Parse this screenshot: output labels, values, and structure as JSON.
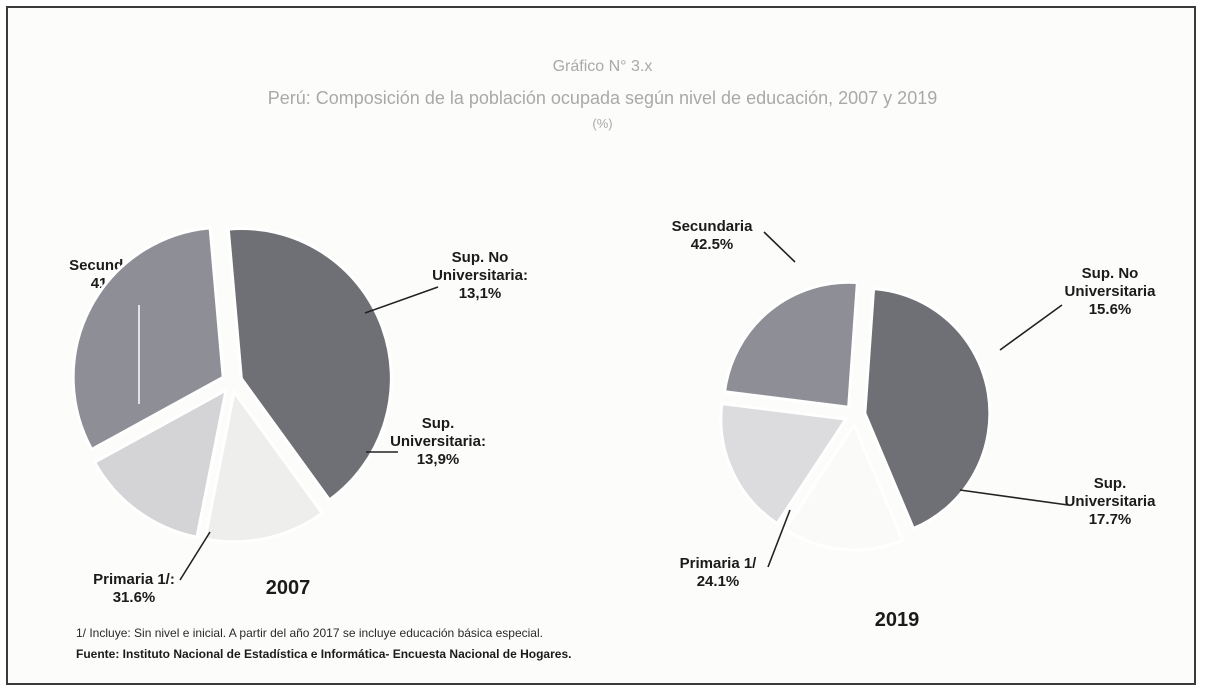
{
  "header": {
    "number": "Gráfico N° 3.x",
    "title": "Perú: Composición de la población ocupada según nivel de educación, 2007 y 2019",
    "subtitle": "(%)"
  },
  "chart_data": [
    {
      "type": "pie",
      "title": "2007",
      "slices": [
        {
          "name": "Secundaria",
          "value": 41.4,
          "label": [
            "Secundaria:",
            "41.4%"
          ],
          "color": "#6f6f76"
        },
        {
          "name": "Sup. No Universitaria",
          "value": 13.1,
          "label": [
            "Sup. No",
            "Universitaria:",
            "13,1%"
          ],
          "color": "#eeeeec"
        },
        {
          "name": "Sup. Universitaria",
          "value": 13.9,
          "label": [
            "Sup.",
            "Universitaria:",
            "13,9%"
          ],
          "color": "#d4d4d6"
        },
        {
          "name": "Primaria 1/",
          "value": 31.6,
          "label": [
            "Primaria 1/:",
            "31.6%"
          ],
          "color": "#8e8e96"
        }
      ]
    },
    {
      "type": "pie",
      "title": "2019",
      "slices": [
        {
          "name": "Secundaria",
          "value": 42.5,
          "label": [
            "Secundaria",
            "42.5%"
          ],
          "color": "#6f6f76"
        },
        {
          "name": "Sup. No Universitaria",
          "value": 15.6,
          "label": [
            "Sup. No",
            "Universitaria",
            "15.6%"
          ],
          "color": "#fafaf8"
        },
        {
          "name": "Sup. Universitaria",
          "value": 17.7,
          "label": [
            "Sup.",
            "Universitaria",
            "17.7%"
          ],
          "color": "#dcdcde"
        },
        {
          "name": "Primaria 1/",
          "value": 24.1,
          "label": [
            "Primaria 1/",
            "24.1%"
          ],
          "color": "#8e8e96"
        }
      ]
    }
  ],
  "footer": {
    "note": "1/ Incluye: Sin nivel e inicial. A partir del año 2017 se incluye educación básica especial.",
    "source": "Fuente: Instituto Nacional de Estadística e Informática- Encuesta Nacional de Hogares."
  }
}
